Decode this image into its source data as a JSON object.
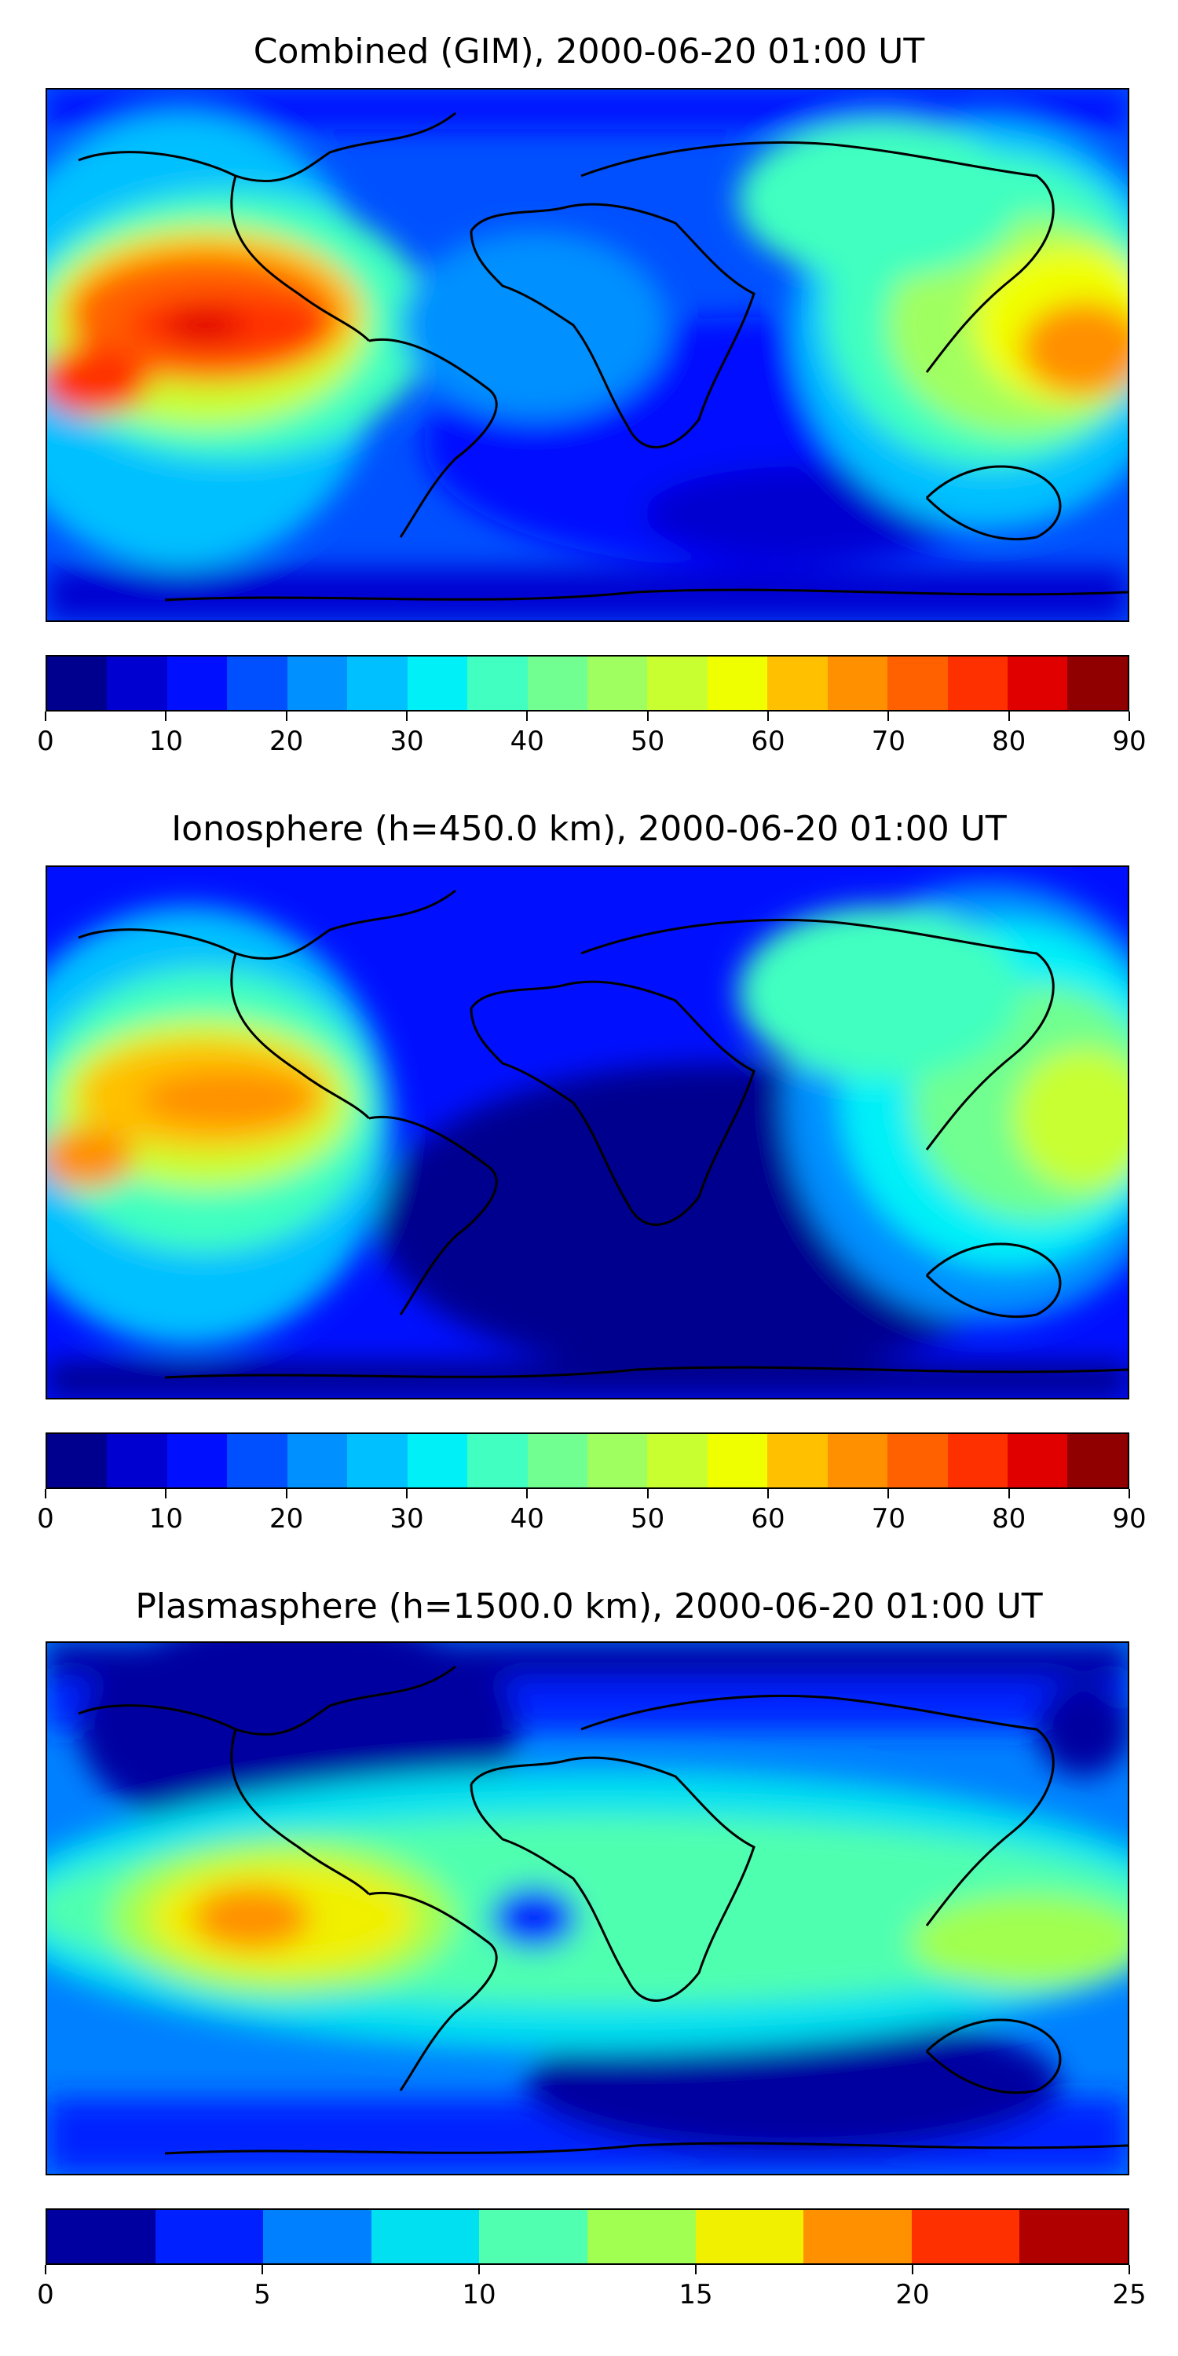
{
  "chart_data": [
    {
      "type": "heatmap",
      "title": "Combined (GIM), 2000-06-20 01:00 UT",
      "colorbar": {
        "min": 0,
        "max": 90,
        "ticks": [
          0,
          10,
          20,
          30,
          40,
          50,
          60,
          70,
          80,
          90
        ],
        "levels": 18
      },
      "features": [
        {
          "kind": "max",
          "region": "eastern Pacific north of equator",
          "value": 85
        },
        {
          "kind": "high",
          "region": "East Asia / Western Pacific",
          "value": 65
        },
        {
          "kind": "low",
          "region": "South Atlantic / Indian Ocean",
          "value": 8
        }
      ]
    },
    {
      "type": "heatmap",
      "title": "Ionosphere  (h=450.0 km), 2000-06-20 01:00 UT",
      "colorbar": {
        "min": 0,
        "max": 90,
        "ticks": [
          0,
          10,
          20,
          30,
          40,
          50,
          60,
          70,
          80,
          90
        ],
        "levels": 18
      },
      "features": [
        {
          "kind": "max",
          "region": "eastern Pacific north of equator",
          "value": 70
        },
        {
          "kind": "high",
          "region": "East Asia / Western Pacific",
          "value": 50
        },
        {
          "kind": "low",
          "region": "South Atlantic / Indian Ocean",
          "value": 3
        }
      ]
    },
    {
      "type": "heatmap",
      "title": "Plasmasphere (h=1500.0 km), 2000-06-20 01:00 UT",
      "colorbar": {
        "min": 0,
        "max": 25,
        "ticks": [
          0,
          5,
          10,
          15,
          20,
          25
        ],
        "levels": 10
      },
      "features": [
        {
          "kind": "max",
          "region": "eastern Pacific west of South America",
          "value": 19
        },
        {
          "kind": "high",
          "region": "equatorial belt",
          "value": 12
        },
        {
          "kind": "low",
          "region": "North America / high latitudes",
          "value": 1
        }
      ]
    }
  ],
  "colors": {
    "jet18": [
      "#00008f",
      "#0000d0",
      "#0010ff",
      "#0050ff",
      "#0090ff",
      "#00c0ff",
      "#00f0f8",
      "#40ffc0",
      "#70ff90",
      "#a0ff60",
      "#c8ff30",
      "#f0ff00",
      "#ffc000",
      "#ff9000",
      "#ff6000",
      "#ff3000",
      "#e00000",
      "#900000"
    ],
    "jet10": [
      "#0000a0",
      "#0020ff",
      "#0080ff",
      "#00e0f0",
      "#50ffb0",
      "#a0ff50",
      "#f0f000",
      "#ff9000",
      "#ff3000",
      "#b00000"
    ],
    "frame": "#000000",
    "coast": "#000000"
  }
}
